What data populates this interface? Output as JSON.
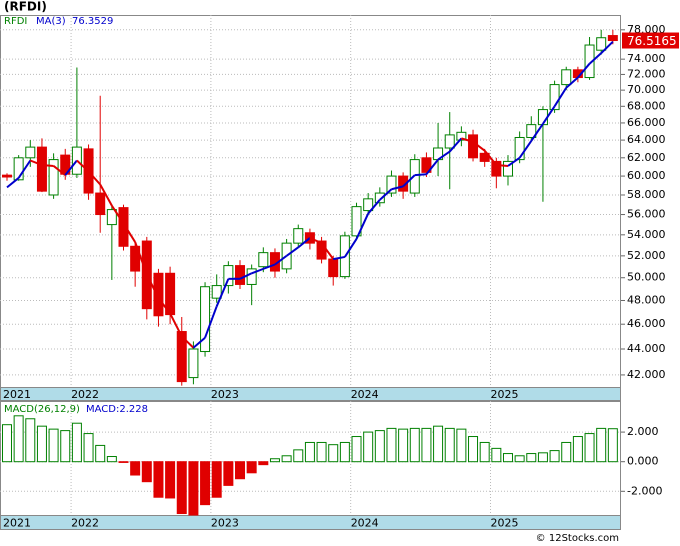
{
  "chart_data": [
    {
      "type": "candlestick",
      "title": "(RFDI)",
      "series_name": "RFDI",
      "ma_name": "MA(3)",
      "log_scale": true,
      "grid": true,
      "up_color": "#008000",
      "down_color": "#e00000",
      "ma_up_color": "#0000cc",
      "ma_down_color": "#e00000",
      "xlim": [
        -0.6,
        52.7
      ],
      "xticks": [
        {
          "value": -6.5,
          "label": "2021"
        },
        {
          "value": 5.5,
          "label": "2022"
        },
        {
          "value": 17.5,
          "label": "2023"
        },
        {
          "value": 29.5,
          "label": "2024"
        },
        {
          "value": 41.5,
          "label": "2025"
        }
      ],
      "ylim": [
        41.1,
        80.1
      ],
      "yticks": [
        {
          "value": 42,
          "label": "42.000"
        },
        {
          "value": 44,
          "label": "44.000"
        },
        {
          "value": 46,
          "label": "46.000"
        },
        {
          "value": 48,
          "label": "48.000"
        },
        {
          "value": 50,
          "label": "50.000"
        },
        {
          "value": 52,
          "label": "52.000"
        },
        {
          "value": 54,
          "label": "54.000"
        },
        {
          "value": 56,
          "label": "56.000"
        },
        {
          "value": 58,
          "label": "58.000"
        },
        {
          "value": 60,
          "label": "60.000"
        },
        {
          "value": 62,
          "label": "62.000"
        },
        {
          "value": 64,
          "label": "64.000"
        },
        {
          "value": 66,
          "label": "66.000"
        },
        {
          "value": 68,
          "label": "68.000"
        },
        {
          "value": 70,
          "label": "70.000"
        },
        {
          "value": 72,
          "label": "72.000"
        },
        {
          "value": 74,
          "label": "74.000"
        },
        {
          "value": 78,
          "label": "78.000"
        }
      ],
      "open": [
        60.1,
        59.6,
        62,
        63.2,
        58,
        62.3,
        60.2,
        63,
        58.2,
        55,
        56.7,
        52.9,
        53.4,
        50.4,
        50.4,
        45.4,
        41.8,
        43.8,
        48.2,
        49.3,
        51.1,
        49.4,
        51,
        52.3,
        50.8,
        53.2,
        54.2,
        53.4,
        51.7,
        50.1,
        53.9,
        56.4,
        57.2,
        58.2,
        60,
        58.2,
        62,
        61.8,
        63.1,
        64,
        64.6,
        62.5,
        61.6,
        60,
        61.8,
        64.3,
        65.8,
        67.6,
        70.7,
        72.6,
        71.6,
        75.2,
        77.2
      ],
      "high": [
        60.3,
        62.3,
        64,
        64.2,
        62.5,
        63,
        72.9,
        63.5,
        69.3,
        57,
        57,
        53.2,
        53.8,
        50.8,
        51,
        46.6,
        44.6,
        49.6,
        50.3,
        51.5,
        51.6,
        51.2,
        52.8,
        52.7,
        53.6,
        55,
        54.6,
        53.8,
        52,
        54.3,
        57.2,
        58.2,
        58.8,
        60.6,
        60.4,
        62.4,
        62.6,
        66,
        67.3,
        65.6,
        65.2,
        63,
        62,
        62.3,
        65,
        66.8,
        68,
        71.2,
        73,
        73,
        77,
        78,
        78
      ],
      "low": [
        59.5,
        59.5,
        61,
        58.3,
        57.6,
        59.6,
        59.8,
        57.5,
        54.2,
        49.8,
        52.5,
        49.2,
        46.4,
        45.8,
        46,
        41.2,
        41.3,
        43.4,
        47.8,
        48.6,
        49,
        47.6,
        50.5,
        50,
        50.4,
        52.8,
        52.6,
        51.3,
        49.3,
        49.9,
        53.5,
        56,
        56.8,
        57.8,
        57.6,
        57.8,
        59.9,
        60,
        58.6,
        63.3,
        61.6,
        61,
        58.7,
        59,
        61.4,
        63.8,
        57.3,
        67.2,
        70,
        71,
        71.3,
        74.6,
        76
      ],
      "close": [
        59.9,
        62,
        63.2,
        58.4,
        61.8,
        60.2,
        63.2,
        58.2,
        56,
        56.5,
        52.9,
        50.6,
        47.3,
        46.7,
        46.8,
        41.5,
        44,
        49.2,
        49.3,
        51.1,
        49.4,
        50.8,
        52.3,
        50.6,
        53.2,
        54.6,
        53.2,
        51.7,
        50.1,
        53.9,
        56.8,
        57.6,
        58.2,
        60,
        58.4,
        61.8,
        60.4,
        63.1,
        64.6,
        64.9,
        62,
        61.6,
        60,
        61.6,
        64.3,
        65.8,
        67.6,
        70.7,
        72.6,
        71.6,
        75.9,
        76.9,
        76.5165
      ],
      "ma": [
        58.8,
        59.8,
        61.7,
        61.2,
        61.1,
        60.1,
        61.7,
        60.5,
        59.1,
        56.9,
        55.1,
        53.3,
        50.3,
        48.2,
        46.9,
        45,
        44.1,
        44.9,
        47.5,
        49.9,
        49.9,
        50.4,
        50.8,
        51.2,
        52,
        52.8,
        53.7,
        53.2,
        51.7,
        51.9,
        53.6,
        56.1,
        57.5,
        58.6,
        58.9,
        60.1,
        60.2,
        61.8,
        62.7,
        64.2,
        63.8,
        62.8,
        61.2,
        61.1,
        62,
        63.9,
        65.9,
        68,
        70.3,
        71.6,
        73.4,
        74.8,
        76.3529
      ]
    },
    {
      "type": "bar",
      "title": "MACD(26,12,9)",
      "value_text": "MACD:2.228",
      "grid": true,
      "up_color": "#008000",
      "down_color": "#e00000",
      "xlim": [
        -0.6,
        52.7
      ],
      "xticks": [
        {
          "value": -6.5,
          "label": "2021"
        },
        {
          "value": 5.5,
          "label": "2022"
        },
        {
          "value": 17.5,
          "label": "2023"
        },
        {
          "value": 29.5,
          "label": "2024"
        },
        {
          "value": 41.5,
          "label": "2025"
        }
      ],
      "ylim": [
        -3.6,
        4.1
      ],
      "yticks": [
        {
          "value": -2,
          "label": "-2.000"
        },
        {
          "value": 0,
          "label": "0.000"
        },
        {
          "value": 2,
          "label": "2.000"
        }
      ],
      "values": [
        2.5,
        3.1,
        2.9,
        2.4,
        2.2,
        2.1,
        2.6,
        1.9,
        1.1,
        0.35,
        -0.05,
        -0.9,
        -1.35,
        -2.4,
        -2.45,
        -3.5,
        -3.6,
        -2.9,
        -2.4,
        -1.6,
        -1.15,
        -0.75,
        -0.2,
        0.2,
        0.4,
        0.8,
        1.3,
        1.3,
        1.15,
        1.3,
        1.7,
        2,
        2.1,
        2.25,
        2.2,
        2.25,
        2.25,
        2.4,
        2.25,
        2.2,
        1.7,
        1.3,
        0.9,
        0.55,
        0.4,
        0.55,
        0.6,
        0.75,
        1.3,
        1.7,
        1.9,
        2.25,
        2.228
      ]
    }
  ],
  "footer": "© 12Stocks.com"
}
